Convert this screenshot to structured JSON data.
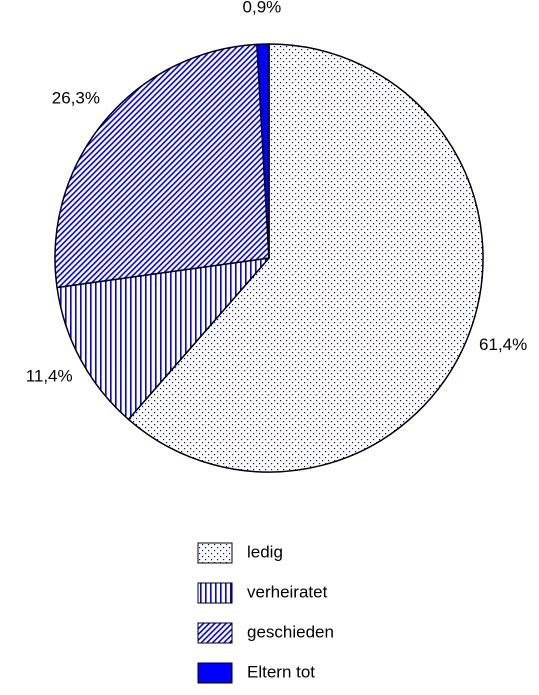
{
  "chart_data": {
    "type": "pie",
    "categories": [
      "ledig",
      "verheiratet",
      "geschieden",
      "Eltern tot"
    ],
    "values": [
      61.4,
      11.4,
      26.3,
      0.9
    ],
    "value_labels": [
      "61,4%",
      "11,4%",
      "26,3%",
      "0,9%"
    ],
    "color": "#0000ff",
    "patterns": [
      "dots",
      "vertical",
      "diagonal",
      "solid"
    ],
    "legend": "bottom"
  }
}
